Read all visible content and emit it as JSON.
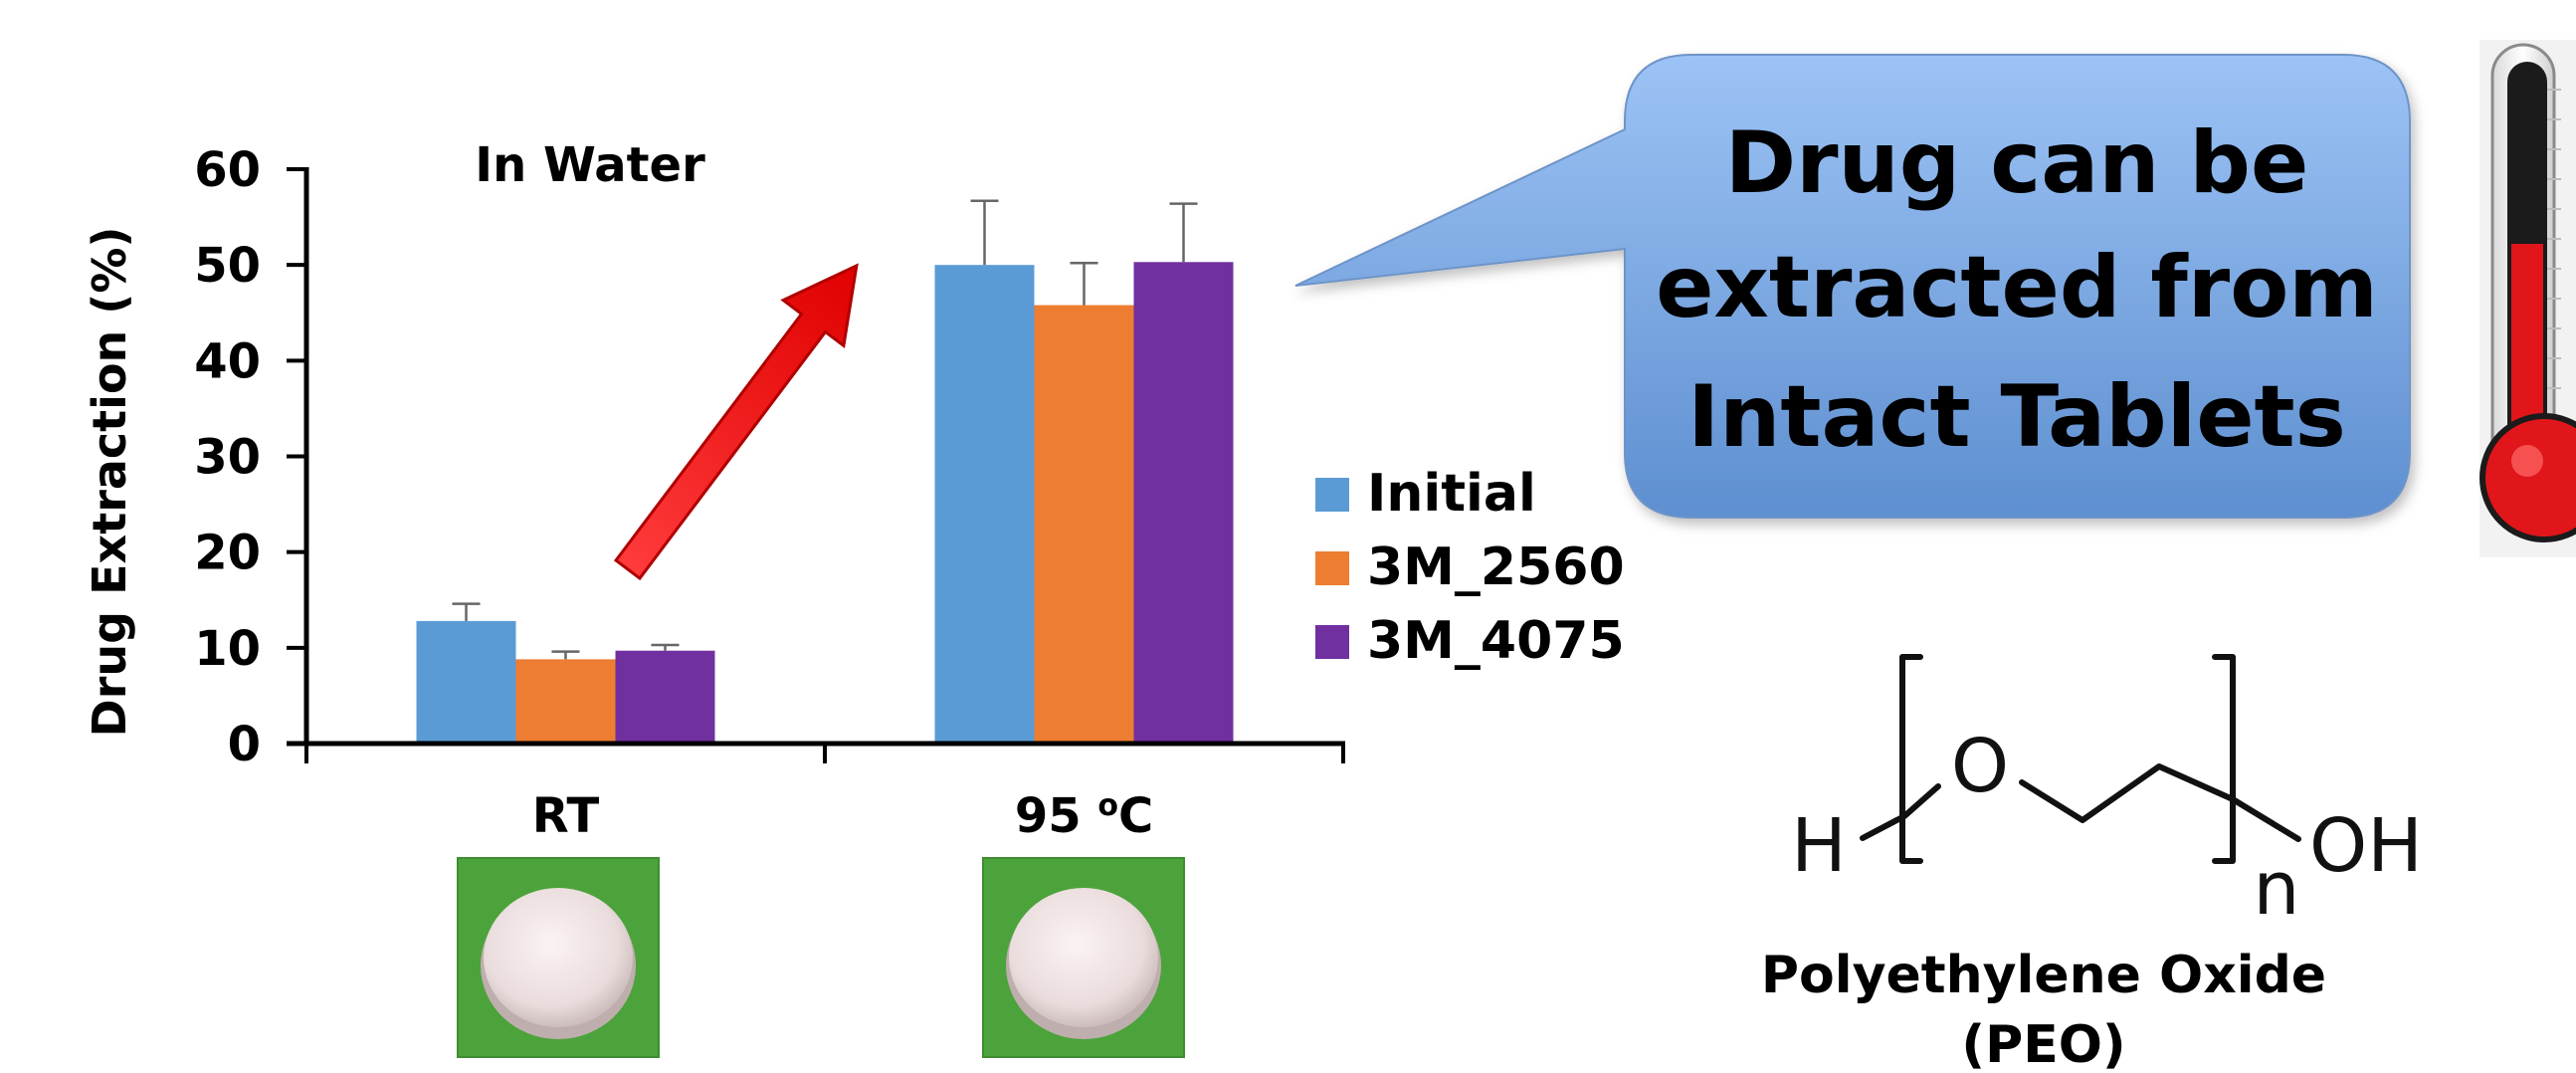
{
  "chart_data": {
    "type": "bar",
    "title": "In Water",
    "ylabel": "Drug Extraction (%)",
    "xlabel": "",
    "ylim": [
      0,
      60
    ],
    "yticks": [
      "0",
      "10",
      "20",
      "30",
      "40",
      "50",
      "60"
    ],
    "categories": [
      {
        "main": "RT",
        "sup": "",
        "unit": ""
      },
      {
        "main": "95 ",
        "sup": "o",
        "unit": "C"
      }
    ],
    "series": [
      {
        "name": "Initial",
        "color": "#5B9BD5",
        "values": [
          12.8,
          50.0
        ],
        "errors": [
          1.8,
          6.7
        ]
      },
      {
        "name": "3M_2560",
        "color": "#ED7D31",
        "values": [
          8.8,
          45.8
        ],
        "errors": [
          0.8,
          4.4
        ]
      },
      {
        "name": "3M_4075",
        "color": "#7030A0",
        "values": [
          9.7,
          50.3
        ],
        "errors": [
          0.6,
          6.1
        ]
      }
    ],
    "legend_position": "right",
    "grid": false
  },
  "callout": {
    "lines": [
      "Drug can be",
      "extracted from",
      "Intact Tablets"
    ],
    "fill_top": "#9CC3F5",
    "fill_bottom": "#5E8FD0"
  },
  "molecule": {
    "atoms": {
      "h_left": "H",
      "oxygen": "O",
      "subscript": "n",
      "hydroxyl": "OH"
    },
    "name_lines": [
      "Polyethylene Oxide",
      "(PEO)"
    ]
  },
  "icons": {
    "arrow": "red-arrow-icon",
    "thermometer": "thermometer-icon",
    "tablet": "tablet-photo"
  },
  "colors": {
    "arrow": "#FF1A1A",
    "tablet_bg": "#4CA33B",
    "thermometer_liquid": "#E0161A"
  }
}
